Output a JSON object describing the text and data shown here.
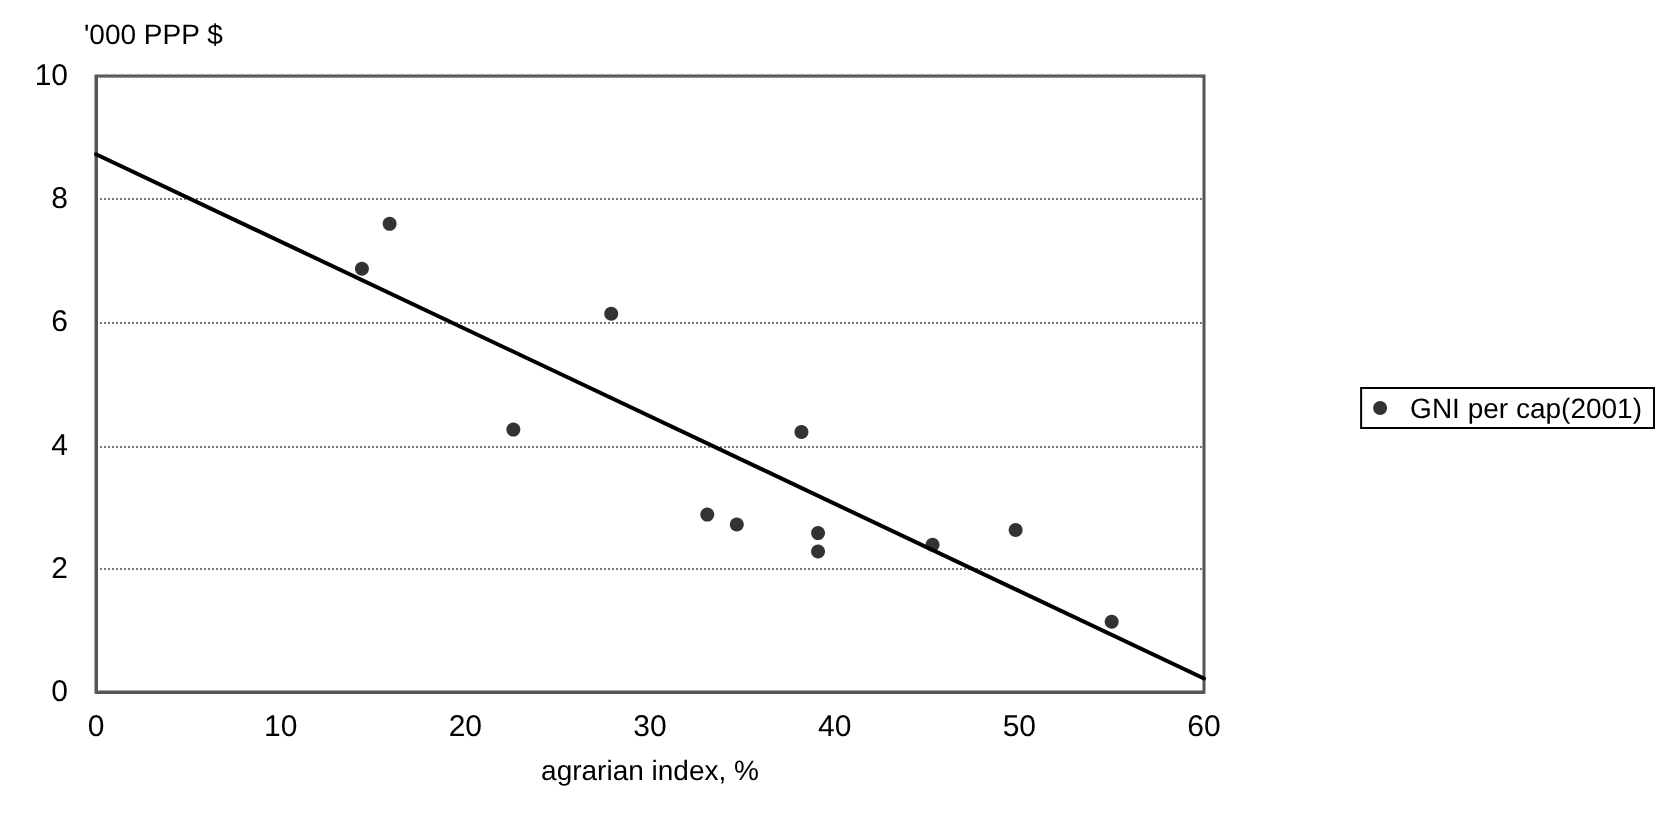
{
  "chart_data": {
    "type": "scatter",
    "xlabel": "agrarian index, %",
    "ylabel": "'000 PPP $",
    "xlim": [
      0,
      60
    ],
    "xticks": [
      0,
      10,
      20,
      30,
      40,
      50,
      60
    ],
    "ylim": [
      0,
      10
    ],
    "yticks": [
      0,
      2,
      4,
      6,
      8,
      10
    ],
    "grid": "y",
    "legend": "right",
    "marker": "circle",
    "series": [
      {
        "name": "GNI per cap(2001)",
        "color": "#000000",
        "x": [
          14.4,
          15.9,
          22.6,
          27.9,
          33.1,
          34.7,
          38.2,
          39.1,
          39.1,
          45.3,
          49.8,
          55.0
        ],
        "values": [
          6.87,
          7.6,
          4.26,
          6.14,
          2.88,
          2.72,
          4.22,
          2.58,
          2.28,
          2.39,
          2.63,
          1.14
        ]
      },
      {
        "type": "line",
        "color": "#000000",
        "x": [
          0,
          60
        ],
        "values": [
          8.73,
          0.22
        ],
        "marker": "none",
        "line_style": "solid"
      }
    ]
  }
}
